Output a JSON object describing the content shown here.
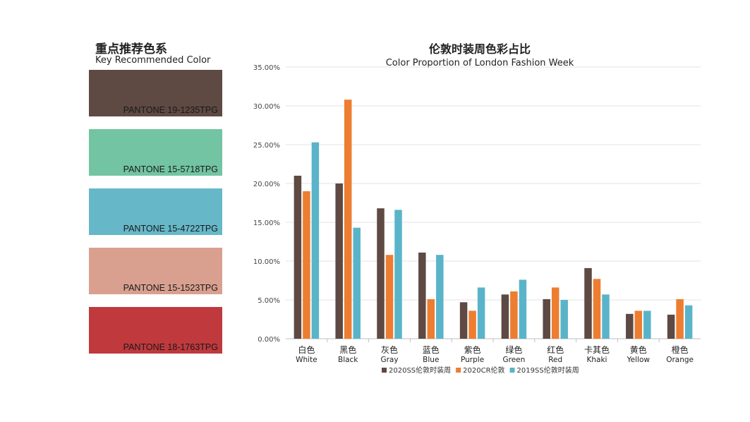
{
  "left_panel": {
    "title_cn": "重点推荐色系",
    "title_en": "Key Recommended Color",
    "swatches": [
      {
        "label": "PANTONE 19-1235TPG",
        "color": "#5e4943"
      },
      {
        "label": "PANTONE 15-5718TPG",
        "color": "#72c4a2"
      },
      {
        "label": "PANTONE 15-4722TPG",
        "color": "#66b8c8"
      },
      {
        "label": "PANTONE 15-1523TPG",
        "color": "#d9a08f"
      },
      {
        "label": "PANTONE 18-1763TPG",
        "color": "#c0393d"
      }
    ]
  },
  "chart_data": {
    "type": "bar",
    "title": "伦敦时装周色彩占比",
    "subtitle": "Color Proportion of London Fashion Week",
    "categories_cn": [
      "白色",
      "黑色",
      "灰色",
      "蓝色",
      "紫色",
      "绿色",
      "红色",
      "卡其色",
      "黄色",
      "橙色"
    ],
    "categories_en": [
      "White",
      "Black",
      "Gray",
      "Blue",
      "Purple",
      "Green",
      "Red",
      "Khaki",
      "Yellow",
      "Orange"
    ],
    "ylim": [
      0,
      35
    ],
    "yticks": [
      "0.00%",
      "5.00%",
      "10.00%",
      "15.00%",
      "20.00%",
      "25.00%",
      "30.00%",
      "35.00%"
    ],
    "grid": true,
    "legend": "bottom",
    "series": [
      {
        "name": "2020SS伦敦时装周",
        "color": "#5e4943",
        "values": [
          21.0,
          20.0,
          16.8,
          11.1,
          4.7,
          5.7,
          5.1,
          9.1,
          3.2,
          3.1
        ]
      },
      {
        "name": "2020CR伦敦",
        "color": "#ed7d31",
        "values": [
          19.0,
          30.8,
          10.8,
          5.1,
          3.6,
          6.1,
          6.6,
          7.7,
          3.6,
          5.1
        ]
      },
      {
        "name": "2019SS伦敦时装周",
        "color": "#5ab4c9",
        "values": [
          25.3,
          14.3,
          16.6,
          10.8,
          6.6,
          7.6,
          5.0,
          5.7,
          3.6,
          4.3
        ]
      }
    ]
  }
}
